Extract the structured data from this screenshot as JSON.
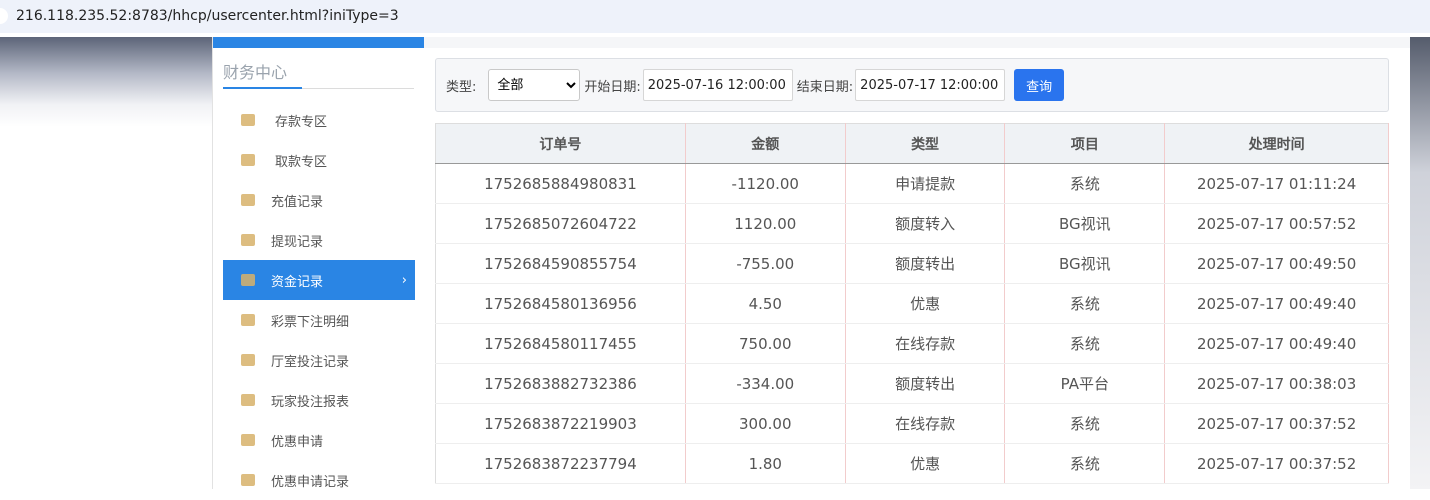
{
  "browser": {
    "url": "216.118.235.52:8783/hhcp/usercenter.html?iniType=3"
  },
  "sidebar": {
    "title": "财务中心",
    "items": [
      {
        "label": "存款专区",
        "icon": "deposit-card-icon"
      },
      {
        "label": "取款专区",
        "icon": "withdraw-hand-icon"
      },
      {
        "label": "充值记录",
        "icon": "money-bag-icon"
      },
      {
        "label": "提现记录",
        "icon": "wallet-icon"
      },
      {
        "label": "资金记录",
        "icon": "funds-icon",
        "active": true
      },
      {
        "label": "彩票下注明细",
        "icon": "list-icon"
      },
      {
        "label": "厅室投注记录",
        "icon": "list-bullets-icon"
      },
      {
        "label": "玩家投注报表",
        "icon": "chart-icon"
      },
      {
        "label": "优惠申请",
        "icon": "gift-icon"
      },
      {
        "label": "优惠申请记录",
        "icon": "list-bullets-icon"
      }
    ]
  },
  "filter": {
    "type_label": "类型:",
    "type_value": "全部",
    "start_label": "开始日期:",
    "start_value": "2025-07-16 12:00:00",
    "end_label": "结束日期:",
    "end_value": "2025-07-17 12:00:00",
    "query_label": "查询"
  },
  "table": {
    "headers": [
      "订单号",
      "金额",
      "类型",
      "项目",
      "处理时间"
    ],
    "rows": [
      [
        "1752685884980831",
        "-1120.00",
        "申请提款",
        "系统",
        "2025-07-17 01:11:24"
      ],
      [
        "1752685072604722",
        "1120.00",
        "额度转入",
        "BG视讯",
        "2025-07-17 00:57:52"
      ],
      [
        "1752684590855754",
        "-755.00",
        "额度转出",
        "BG视讯",
        "2025-07-17 00:49:50"
      ],
      [
        "1752684580136956",
        "4.50",
        "优惠",
        "系统",
        "2025-07-17 00:49:40"
      ],
      [
        "1752684580117455",
        "750.00",
        "在线存款",
        "系统",
        "2025-07-17 00:49:40"
      ],
      [
        "1752683882732386",
        "-334.00",
        "额度转出",
        "PA平台",
        "2025-07-17 00:38:03"
      ],
      [
        "1752683872219903",
        "300.00",
        "在线存款",
        "系统",
        "2025-07-17 00:37:52"
      ],
      [
        "1752683872237794",
        "1.80",
        "优惠",
        "系统",
        "2025-07-17 00:37:52"
      ]
    ]
  }
}
